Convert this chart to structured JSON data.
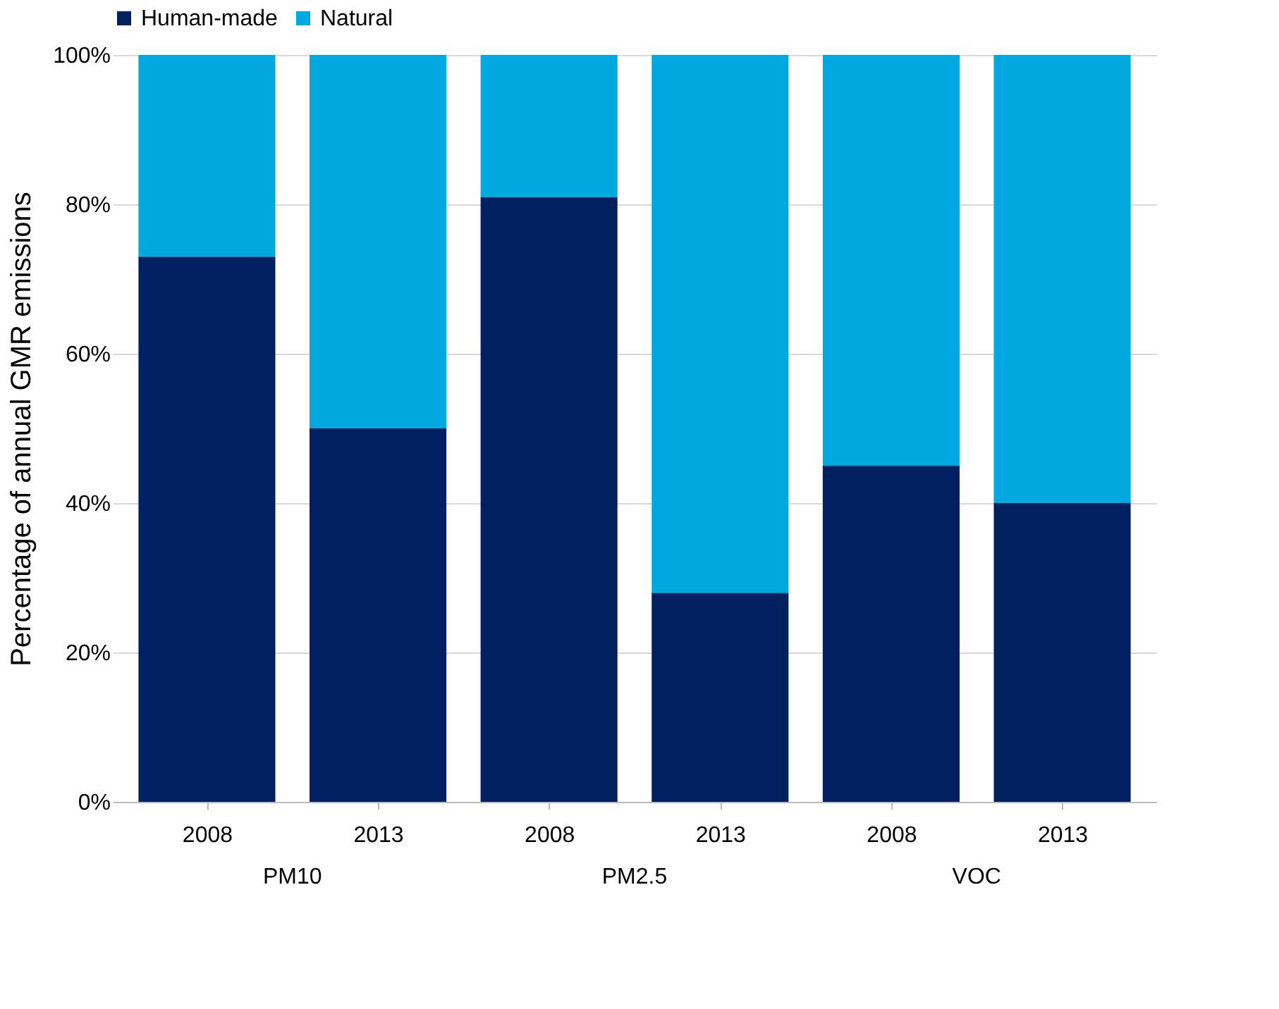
{
  "chart_data": {
    "type": "bar",
    "stacked": true,
    "ylabel": "Percentage of annual GMR emissions",
    "categories": [
      "2008",
      "2013",
      "2008",
      "2013",
      "2008",
      "2013"
    ],
    "annotations": [
      "PM10",
      "PM2.5",
      "VOC"
    ],
    "series": [
      {
        "name": "Human-made",
        "color": "#002060",
        "values": [
          73,
          50,
          81,
          28,
          45,
          40
        ]
      },
      {
        "name": "Natural",
        "color": "#00a8e0",
        "values": [
          27,
          50,
          19,
          72,
          55,
          60
        ]
      }
    ],
    "ylim": [
      0,
      100
    ],
    "yticks": [
      {
        "value": 0,
        "label": "0%"
      },
      {
        "value": 20,
        "label": "20%"
      },
      {
        "value": 40,
        "label": "40%"
      },
      {
        "value": 60,
        "label": "60%"
      },
      {
        "value": 80,
        "label": "80%"
      },
      {
        "value": 100,
        "label": "100%"
      }
    ],
    "grid": "y",
    "legend": "top"
  }
}
